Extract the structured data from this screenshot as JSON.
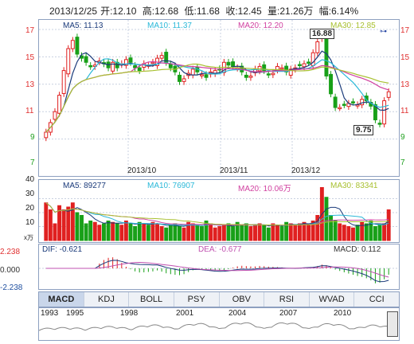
{
  "header": {
    "date": "2013/12/25",
    "open": "开:12.10",
    "high": "高:12.68",
    "low": "低:11.68",
    "close": "收:12.45",
    "volume": "量:21.26万",
    "change": "幅:6.14%"
  },
  "price_panel": {
    "ma5": "MA5: 11.13",
    "ma10": "MA10: 11.37",
    "ma20": "MA20: 12.20",
    "ma30": "MA30: 12.85",
    "y_labels": [
      "17",
      "15",
      "13",
      "11",
      "9",
      "7"
    ],
    "x_labels": [
      "2013/10",
      "2013/11",
      "2013/12"
    ],
    "high_label": "16.88",
    "low_label": "9.75",
    "colors": {
      "ma5": "#1a3a7a",
      "ma10": "#2ab8d8",
      "ma20": "#d040a0",
      "ma30": "#a8c030",
      "up": "#e02020",
      "down": "#18a018"
    }
  },
  "volume_panel": {
    "ma5": "MA5: 89277",
    "ma10": "MA10: 76907",
    "ma20": "MA20: 10.06万",
    "ma30": "MA30: 83341",
    "y_labels": [
      "40",
      "30",
      "20",
      "10"
    ],
    "unit": "x万"
  },
  "macd_panel": {
    "dif": "DIF: -0.621",
    "dea": "DEA: -0.677",
    "macd": "MACD: 0.112",
    "y_labels": [
      "2.238",
      "0.000",
      "-2.238"
    ]
  },
  "tabs": [
    "MACD",
    "KDJ",
    "BOLL",
    "PSY",
    "OBV",
    "RSI",
    "WVAD",
    "CCI"
  ],
  "timeline": {
    "years": [
      "1993",
      "1995",
      "1998",
      "2001",
      "2004",
      "2007",
      "2010"
    ]
  },
  "chart_data": {
    "type": "candlestick",
    "y_range": [
      7,
      17
    ],
    "series_closes_approx": [
      9.5,
      10.2,
      11.0,
      12.2,
      14.0,
      15.6,
      16.2,
      15.2,
      14.9,
      14.6,
      14.3,
      14.4,
      14.7,
      14.5,
      14.2,
      14.6,
      14.2,
      14.5,
      14.8,
      14.6,
      14.2,
      14.0,
      14.5,
      14.4,
      14.6,
      14.9,
      15.1,
      14.6,
      14.2,
      13.9,
      13.2,
      13.4,
      13.8,
      14.1,
      13.9,
      13.7,
      13.5,
      13.9,
      14.0,
      14.1,
      14.6,
      14.4,
      14.3,
      14.2,
      13.9,
      13.5,
      13.6,
      14.1,
      14.3,
      14.0,
      13.7,
      13.8,
      14.3,
      14.2,
      13.9,
      14.1,
      14.2,
      14.4,
      14.5,
      14.6,
      15.3,
      16.1,
      16.6,
      13.6,
      12.3,
      11.3,
      11.3,
      11.5,
      11.6,
      11.7,
      11.5,
      11.9,
      11.8,
      11.4,
      10.4,
      10.1,
      11.8,
      12.45
    ],
    "volumes_approx": [
      27,
      22,
      12,
      25,
      22,
      24,
      27,
      20,
      18,
      12,
      14,
      13,
      11,
      12,
      14,
      13,
      12,
      11,
      14,
      12,
      10,
      13,
      12,
      11,
      13,
      12,
      10,
      9,
      11,
      12,
      10,
      9,
      13,
      12,
      11,
      10,
      14,
      12,
      9,
      10,
      11,
      12,
      10,
      13,
      11,
      12,
      10,
      11,
      12,
      11,
      9,
      12,
      11,
      10,
      13,
      12,
      11,
      12,
      13,
      12,
      14,
      18,
      38,
      31,
      18,
      14,
      12,
      11,
      10,
      9,
      11,
      13,
      12,
      14,
      10,
      11,
      12,
      22
    ]
  }
}
